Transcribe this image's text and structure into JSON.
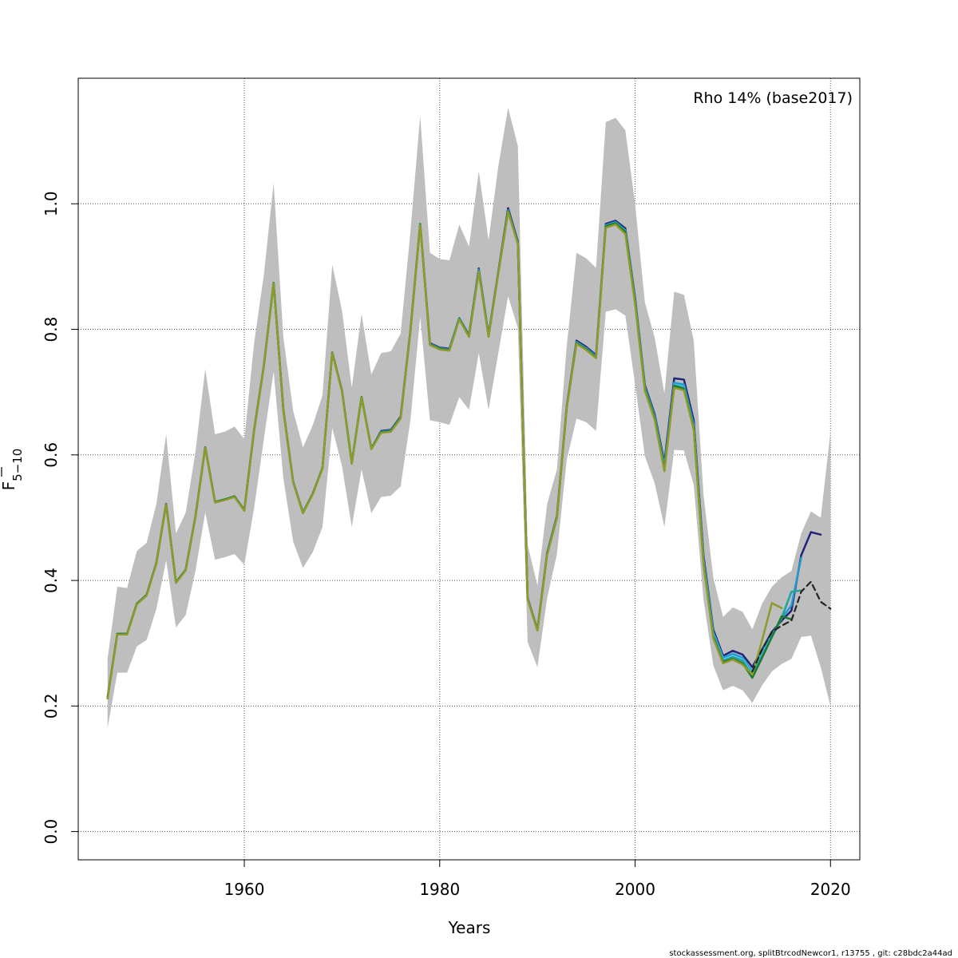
{
  "chart_data": {
    "type": "line",
    "xlabel": "Years",
    "ylabel": {
      "base": "F",
      "subscript": "5−10"
    },
    "annotation": "Rho 14% (base2017)",
    "footer": "stockassessment.org, splitBtrcodNewcor1, r13755 , git: c28bdc2a44ad",
    "xlim": [
      1943,
      2023
    ],
    "ylim": [
      -0.045,
      1.2
    ],
    "x_ticks": [
      1960,
      1980,
      2000,
      2020
    ],
    "y_ticks": [
      0.0,
      0.2,
      0.4,
      0.6,
      0.8,
      1.0
    ],
    "y_tick_labels": [
      "0.0",
      "0.2",
      "0.4",
      "0.6",
      "0.8",
      "1.0"
    ],
    "grid": true,
    "confidence_band": {
      "color": "#bebebe",
      "x": [
        1946,
        1947,
        1948,
        1949,
        1950,
        1951,
        1952,
        1953,
        1954,
        1955,
        1956,
        1957,
        1958,
        1959,
        1960,
        1961,
        1962,
        1963,
        1964,
        1965,
        1966,
        1967,
        1968,
        1969,
        1970,
        1971,
        1972,
        1973,
        1974,
        1975,
        1976,
        1977,
        1978,
        1979,
        1980,
        1981,
        1982,
        1983,
        1984,
        1985,
        1986,
        1987,
        1988,
        1989,
        1990,
        1991,
        1992,
        1993,
        1994,
        1995,
        1996,
        1997,
        1998,
        1999,
        2000,
        2001,
        2002,
        2003,
        2004,
        2005,
        2006,
        2007,
        2008,
        2009,
        2010,
        2011,
        2012,
        2013,
        2014,
        2015,
        2016,
        2017,
        2018,
        2019,
        2020
      ],
      "lower": [
        0.165,
        0.253,
        0.253,
        0.295,
        0.305,
        0.355,
        0.432,
        0.325,
        0.345,
        0.415,
        0.508,
        0.433,
        0.437,
        0.442,
        0.425,
        0.515,
        0.625,
        0.733,
        0.562,
        0.462,
        0.42,
        0.445,
        0.485,
        0.643,
        0.582,
        0.485,
        0.577,
        0.507,
        0.533,
        0.535,
        0.55,
        0.655,
        0.82,
        0.655,
        0.652,
        0.648,
        0.692,
        0.672,
        0.762,
        0.672,
        0.762,
        0.853,
        0.802,
        0.302,
        0.262,
        0.372,
        0.442,
        0.592,
        0.658,
        0.652,
        0.638,
        0.828,
        0.832,
        0.822,
        0.712,
        0.598,
        0.555,
        0.485,
        0.608,
        0.607,
        0.552,
        0.37,
        0.265,
        0.225,
        0.232,
        0.225,
        0.205,
        0.233,
        0.255,
        0.267,
        0.275,
        0.31,
        0.312,
        0.262,
        0.2
      ],
      "upper": [
        0.275,
        0.39,
        0.388,
        0.447,
        0.46,
        0.522,
        0.633,
        0.475,
        0.508,
        0.605,
        0.737,
        0.633,
        0.637,
        0.645,
        0.625,
        0.778,
        0.887,
        1.033,
        0.787,
        0.67,
        0.612,
        0.647,
        0.695,
        0.903,
        0.83,
        0.707,
        0.825,
        0.728,
        0.762,
        0.765,
        0.793,
        0.955,
        1.14,
        0.922,
        0.912,
        0.91,
        0.967,
        0.932,
        1.052,
        0.942,
        1.06,
        1.153,
        1.092,
        0.457,
        0.392,
        0.522,
        0.577,
        0.773,
        0.922,
        0.913,
        0.898,
        1.13,
        1.137,
        1.117,
        1.0,
        0.843,
        0.787,
        0.698,
        0.86,
        0.855,
        0.782,
        0.537,
        0.405,
        0.342,
        0.357,
        0.35,
        0.322,
        0.363,
        0.39,
        0.405,
        0.415,
        0.475,
        0.51,
        0.5,
        0.637
      ]
    },
    "series": [
      {
        "color": "#22227a",
        "dashed": false,
        "width": 2.5,
        "x": [
          1946,
          1947,
          1948,
          1949,
          1950,
          1951,
          1952,
          1953,
          1954,
          1955,
          1956,
          1957,
          1958,
          1959,
          1960,
          1961,
          1962,
          1963,
          1964,
          1965,
          1966,
          1967,
          1968,
          1969,
          1970,
          1971,
          1972,
          1973,
          1974,
          1975,
          1976,
          1977,
          1978,
          1979,
          1980,
          1981,
          1982,
          1983,
          1984,
          1985,
          1986,
          1987,
          1988,
          1989,
          1990,
          1991,
          1992,
          1993,
          1994,
          1995,
          1996,
          1997,
          1998,
          1999,
          2000,
          2001,
          2002,
          2003,
          2004,
          2005,
          2006,
          2007,
          2008,
          2009,
          2010,
          2011,
          2012,
          2013,
          2014,
          2015,
          2016,
          2017,
          2018,
          2019
        ],
        "values": [
          0.213,
          0.315,
          0.315,
          0.363,
          0.377,
          0.428,
          0.522,
          0.397,
          0.417,
          0.502,
          0.612,
          0.525,
          0.529,
          0.534,
          0.512,
          0.639,
          0.742,
          0.874,
          0.671,
          0.557,
          0.508,
          0.538,
          0.579,
          0.763,
          0.702,
          0.587,
          0.692,
          0.61,
          0.638,
          0.64,
          0.661,
          0.798,
          0.968,
          0.778,
          0.771,
          0.769,
          0.818,
          0.791,
          0.897,
          0.791,
          0.892,
          0.993,
          0.94,
          0.372,
          0.322,
          0.444,
          0.503,
          0.677,
          0.782,
          0.772,
          0.759,
          0.968,
          0.973,
          0.961,
          0.85,
          0.711,
          0.665,
          0.588,
          0.722,
          0.72,
          0.655,
          0.44,
          0.322,
          0.28,
          0.288,
          0.282,
          0.262,
          0.29,
          0.318,
          0.336,
          0.352,
          0.44,
          0.477,
          0.473
        ]
      },
      {
        "color": "#1f9bd0",
        "dashed": false,
        "width": 2.5,
        "x": [
          1946,
          1947,
          1948,
          1949,
          1950,
          1951,
          1952,
          1953,
          1954,
          1955,
          1956,
          1957,
          1958,
          1959,
          1960,
          1961,
          1962,
          1963,
          1964,
          1965,
          1966,
          1967,
          1968,
          1969,
          1970,
          1971,
          1972,
          1973,
          1974,
          1975,
          1976,
          1977,
          1978,
          1979,
          1980,
          1981,
          1982,
          1983,
          1984,
          1985,
          1986,
          1987,
          1988,
          1989,
          1990,
          1991,
          1992,
          1993,
          1994,
          1995,
          1996,
          1997,
          1998,
          1999,
          2000,
          2001,
          2002,
          2003,
          2004,
          2005,
          2006,
          2007,
          2008,
          2009,
          2010,
          2011,
          2012,
          2013,
          2014,
          2015,
          2016,
          2017
        ],
        "values": [
          0.213,
          0.315,
          0.315,
          0.363,
          0.377,
          0.428,
          0.522,
          0.397,
          0.417,
          0.502,
          0.612,
          0.525,
          0.529,
          0.534,
          0.512,
          0.639,
          0.742,
          0.874,
          0.671,
          0.557,
          0.508,
          0.538,
          0.579,
          0.763,
          0.702,
          0.587,
          0.692,
          0.61,
          0.637,
          0.639,
          0.66,
          0.797,
          0.968,
          0.777,
          0.77,
          0.768,
          0.818,
          0.79,
          0.895,
          0.79,
          0.891,
          0.99,
          0.938,
          0.371,
          0.322,
          0.443,
          0.502,
          0.676,
          0.78,
          0.77,
          0.757,
          0.966,
          0.971,
          0.958,
          0.846,
          0.708,
          0.662,
          0.583,
          0.715,
          0.712,
          0.648,
          0.434,
          0.318,
          0.277,
          0.283,
          0.277,
          0.255,
          0.286,
          0.313,
          0.34,
          0.36,
          0.436
        ]
      },
      {
        "color": "#56c8e8",
        "dashed": false,
        "width": 2.5,
        "x": [
          1946,
          1947,
          1948,
          1949,
          1950,
          1951,
          1952,
          1953,
          1954,
          1955,
          1956,
          1957,
          1958,
          1959,
          1960,
          1961,
          1962,
          1963,
          1964,
          1965,
          1966,
          1967,
          1968,
          1969,
          1970,
          1971,
          1972,
          1973,
          1974,
          1975,
          1976,
          1977,
          1978,
          1979,
          1980,
          1981,
          1982,
          1983,
          1984,
          1985,
          1986,
          1987,
          1988,
          1989,
          1990,
          1991,
          1992,
          1993,
          1994,
          1995,
          1996,
          1997,
          1998,
          1999,
          2000,
          2001,
          2002,
          2003,
          2004,
          2005,
          2006,
          2007,
          2008,
          2009,
          2010,
          2011,
          2012,
          2013,
          2014,
          2015,
          2016
        ],
        "values": [
          0.213,
          0.315,
          0.315,
          0.363,
          0.377,
          0.428,
          0.522,
          0.397,
          0.417,
          0.502,
          0.612,
          0.525,
          0.529,
          0.534,
          0.512,
          0.639,
          0.742,
          0.874,
          0.671,
          0.557,
          0.508,
          0.538,
          0.579,
          0.763,
          0.702,
          0.587,
          0.692,
          0.61,
          0.636,
          0.638,
          0.659,
          0.797,
          0.967,
          0.776,
          0.769,
          0.767,
          0.817,
          0.789,
          0.894,
          0.789,
          0.89,
          0.988,
          0.937,
          0.371,
          0.321,
          0.442,
          0.501,
          0.675,
          0.779,
          0.769,
          0.756,
          0.965,
          0.97,
          0.957,
          0.845,
          0.706,
          0.66,
          0.58,
          0.712,
          0.708,
          0.645,
          0.431,
          0.315,
          0.274,
          0.28,
          0.274,
          0.252,
          0.282,
          0.311,
          0.342,
          0.382
        ]
      },
      {
        "color": "#2aa198",
        "dashed": false,
        "width": 2.5,
        "x": [
          1946,
          1947,
          1948,
          1949,
          1950,
          1951,
          1952,
          1953,
          1954,
          1955,
          1956,
          1957,
          1958,
          1959,
          1960,
          1961,
          1962,
          1963,
          1964,
          1965,
          1966,
          1967,
          1968,
          1969,
          1970,
          1971,
          1972,
          1973,
          1974,
          1975,
          1976,
          1977,
          1978,
          1979,
          1980,
          1981,
          1982,
          1983,
          1984,
          1985,
          1986,
          1987,
          1988,
          1989,
          1990,
          1991,
          1992,
          1993,
          1994,
          1995,
          1996,
          1997,
          1998,
          1999,
          2000,
          2001,
          2002,
          2003,
          2004,
          2005,
          2006,
          2007,
          2008,
          2009,
          2010,
          2011,
          2012,
          2013,
          2014,
          2015,
          2016,
          2017
        ],
        "values": [
          0.213,
          0.315,
          0.315,
          0.363,
          0.377,
          0.428,
          0.522,
          0.397,
          0.417,
          0.502,
          0.612,
          0.525,
          0.529,
          0.534,
          0.512,
          0.639,
          0.742,
          0.874,
          0.671,
          0.557,
          0.508,
          0.538,
          0.579,
          0.763,
          0.702,
          0.587,
          0.692,
          0.61,
          0.636,
          0.638,
          0.659,
          0.797,
          0.967,
          0.776,
          0.769,
          0.767,
          0.817,
          0.789,
          0.893,
          0.789,
          0.89,
          0.988,
          0.937,
          0.371,
          0.321,
          0.442,
          0.501,
          0.675,
          0.779,
          0.769,
          0.756,
          0.965,
          0.97,
          0.957,
          0.845,
          0.706,
          0.66,
          0.579,
          0.711,
          0.707,
          0.644,
          0.43,
          0.314,
          0.272,
          0.278,
          0.272,
          0.25,
          0.28,
          0.31,
          0.34,
          0.382,
          0.384
        ]
      },
      {
        "color": "#1a7a30",
        "dashed": false,
        "width": 2.5,
        "x": [
          1946,
          1947,
          1948,
          1949,
          1950,
          1951,
          1952,
          1953,
          1954,
          1955,
          1956,
          1957,
          1958,
          1959,
          1960,
          1961,
          1962,
          1963,
          1964,
          1965,
          1966,
          1967,
          1968,
          1969,
          1970,
          1971,
          1972,
          1973,
          1974,
          1975,
          1976,
          1977,
          1978,
          1979,
          1980,
          1981,
          1982,
          1983,
          1984,
          1985,
          1986,
          1987,
          1988,
          1989,
          1990,
          1991,
          1992,
          1993,
          1994,
          1995,
          1996,
          1997,
          1998,
          1999,
          2000,
          2001,
          2002,
          2003,
          2004,
          2005,
          2006,
          2007,
          2008,
          2009,
          2010,
          2011,
          2012,
          2013,
          2014,
          2015,
          2016
        ],
        "values": [
          0.213,
          0.315,
          0.315,
          0.363,
          0.377,
          0.428,
          0.522,
          0.397,
          0.417,
          0.502,
          0.612,
          0.525,
          0.529,
          0.534,
          0.512,
          0.639,
          0.742,
          0.874,
          0.671,
          0.557,
          0.508,
          0.538,
          0.579,
          0.763,
          0.702,
          0.587,
          0.692,
          0.61,
          0.636,
          0.638,
          0.659,
          0.797,
          0.967,
          0.776,
          0.769,
          0.767,
          0.817,
          0.789,
          0.893,
          0.789,
          0.89,
          0.988,
          0.937,
          0.371,
          0.321,
          0.442,
          0.501,
          0.675,
          0.778,
          0.768,
          0.755,
          0.964,
          0.969,
          0.955,
          0.842,
          0.704,
          0.658,
          0.577,
          0.71,
          0.705,
          0.642,
          0.427,
          0.31,
          0.27,
          0.275,
          0.268,
          0.245,
          0.277,
          0.31,
          0.343,
          0.338
        ]
      },
      {
        "color": "#8f9a28",
        "dashed": false,
        "width": 2.5,
        "x": [
          1946,
          1947,
          1948,
          1949,
          1950,
          1951,
          1952,
          1953,
          1954,
          1955,
          1956,
          1957,
          1958,
          1959,
          1960,
          1961,
          1962,
          1963,
          1964,
          1965,
          1966,
          1967,
          1968,
          1969,
          1970,
          1971,
          1972,
          1973,
          1974,
          1975,
          1976,
          1977,
          1978,
          1979,
          1980,
          1981,
          1982,
          1983,
          1984,
          1985,
          1986,
          1987,
          1988,
          1989,
          1990,
          1991,
          1992,
          1993,
          1994,
          1995,
          1996,
          1997,
          1998,
          1999,
          2000,
          2001,
          2002,
          2003,
          2004,
          2005,
          2006,
          2007,
          2008,
          2009,
          2010,
          2011,
          2012,
          2013,
          2014,
          2015
        ],
        "values": [
          0.212,
          0.314,
          0.314,
          0.362,
          0.376,
          0.427,
          0.521,
          0.396,
          0.416,
          0.501,
          0.611,
          0.524,
          0.528,
          0.533,
          0.511,
          0.638,
          0.741,
          0.873,
          0.67,
          0.556,
          0.507,
          0.537,
          0.578,
          0.762,
          0.701,
          0.586,
          0.691,
          0.609,
          0.635,
          0.637,
          0.658,
          0.796,
          0.966,
          0.775,
          0.768,
          0.766,
          0.816,
          0.788,
          0.892,
          0.788,
          0.889,
          0.987,
          0.936,
          0.37,
          0.32,
          0.441,
          0.5,
          0.674,
          0.777,
          0.767,
          0.754,
          0.962,
          0.967,
          0.952,
          0.84,
          0.702,
          0.656,
          0.574,
          0.707,
          0.703,
          0.64,
          0.425,
          0.308,
          0.268,
          0.274,
          0.266,
          0.25,
          0.305,
          0.364,
          0.356
        ]
      },
      {
        "color": "#222222",
        "dashed": true,
        "width": 2.2,
        "x": [
          2012,
          2013,
          2014,
          2015,
          2016,
          2017,
          2018,
          2019,
          2020
        ],
        "values": [
          0.255,
          0.29,
          0.318,
          0.328,
          0.336,
          0.382,
          0.398,
          0.366,
          0.355
        ]
      }
    ]
  }
}
